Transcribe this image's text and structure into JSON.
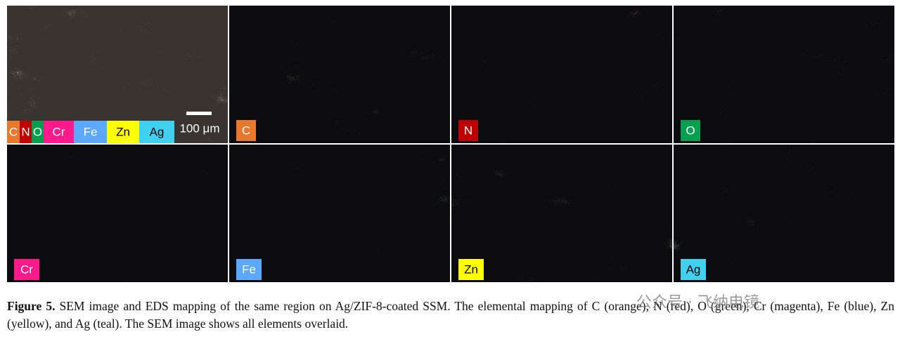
{
  "figure": {
    "panels": [
      {
        "label": null,
        "kind": "sem",
        "tint": "#b09080"
      },
      {
        "label": "C",
        "label_color": "#e8782c",
        "label_text_color": "#ffffff",
        "tint": "#c8782c"
      },
      {
        "label": "N",
        "label_color": "#c00000",
        "label_text_color": "#ffffff",
        "tint": "#b02838"
      },
      {
        "label": "O",
        "label_color": "#00a050",
        "label_text_color": "#ffffff",
        "tint": "#30a088"
      },
      {
        "label": "Cr",
        "label_color": "#ff1a8c",
        "label_text_color": "#ffffff",
        "tint": "#a02060"
      },
      {
        "label": "Fe",
        "label_color": "#5aa8ff",
        "label_text_color": "#ffffff",
        "tint": "#6080a0"
      },
      {
        "label": "Zn",
        "label_color": "#ffff00",
        "label_text_color": "#000000",
        "tint": "#a89c40"
      },
      {
        "label": "Ag",
        "label_color": "#40d0f0",
        "label_text_color": "#000000",
        "tint": "#40a0b0"
      }
    ],
    "legend_keys": [
      {
        "label": "C",
        "color": "#e8782c",
        "text_color": "#ffffff"
      },
      {
        "label": "N",
        "color": "#c00000",
        "text_color": "#ffffff"
      },
      {
        "label": "O",
        "color": "#00a050",
        "text_color": "#ffffff"
      },
      {
        "label": "Cr",
        "color": "#ff1a8c",
        "text_color": "#ffffff"
      },
      {
        "label": "Fe",
        "color": "#5aa8ff",
        "text_color": "#ffffff"
      },
      {
        "label": "Zn",
        "color": "#ffff00",
        "text_color": "#000000"
      },
      {
        "label": "Ag",
        "color": "#40d0f0",
        "text_color": "#000000"
      }
    ],
    "scale_bar": "100 μm"
  },
  "caption": {
    "label": "Figure 5.",
    "text": " SEM image and EDS mapping of the same region on Ag/ZIF-8-coated SSM. The elemental mapping of C (orange), N (red), O (green), Cr (magenta), Fe (blue), Zn (yellow), and Ag (teal). The SEM image shows all elements overlaid."
  },
  "watermark": "公众号 · 飞纳电镜"
}
